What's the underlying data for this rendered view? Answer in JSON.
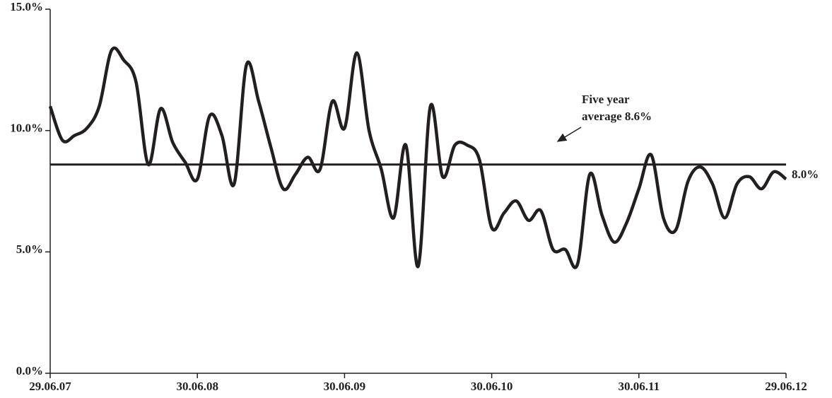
{
  "chart_data": {
    "type": "line",
    "categories": [
      "29.06.07",
      null,
      null,
      null,
      null,
      null,
      null,
      null,
      null,
      null,
      null,
      null,
      "30.06.08",
      null,
      null,
      null,
      null,
      null,
      null,
      null,
      null,
      null,
      null,
      null,
      "30.06.09",
      null,
      null,
      null,
      null,
      null,
      null,
      null,
      null,
      null,
      null,
      null,
      "30.06.10",
      null,
      null,
      null,
      null,
      null,
      null,
      null,
      null,
      null,
      null,
      null,
      "30.06.11",
      null,
      null,
      null,
      null,
      null,
      null,
      null,
      null,
      null,
      null,
      null,
      "29.06.12"
    ],
    "values": [
      11.0,
      9.6,
      9.8,
      10.1,
      11.0,
      13.3,
      12.9,
      12.0,
      8.6,
      10.9,
      9.5,
      8.7,
      8.0,
      10.6,
      9.8,
      7.8,
      12.7,
      11.2,
      9.3,
      7.6,
      8.2,
      8.9,
      8.4,
      11.2,
      10.1,
      13.2,
      10.0,
      8.4,
      6.4,
      9.4,
      4.4,
      11.0,
      8.1,
      9.4,
      9.4,
      8.8,
      6.0,
      6.6,
      7.1,
      6.3,
      6.7,
      5.1,
      5.1,
      4.5,
      8.2,
      6.5,
      5.4,
      6.2,
      7.6,
      9.0,
      6.4,
      5.9,
      7.9,
      8.5,
      7.8,
      6.4,
      7.8,
      8.1,
      7.6,
      8.3,
      8.0
    ],
    "end_label": "8.0%",
    "color": "#231f20",
    "ylim": [
      0,
      15
    ],
    "yticks": [
      {
        "value": 0,
        "label": "0.0%"
      },
      {
        "value": 5,
        "label": "5.0%"
      },
      {
        "value": 10,
        "label": "10.0%"
      },
      {
        "value": 15,
        "label": "15.0%"
      }
    ],
    "reference_line": 8.6,
    "annotation": [
      "Five year",
      "average 8.6%"
    ]
  }
}
